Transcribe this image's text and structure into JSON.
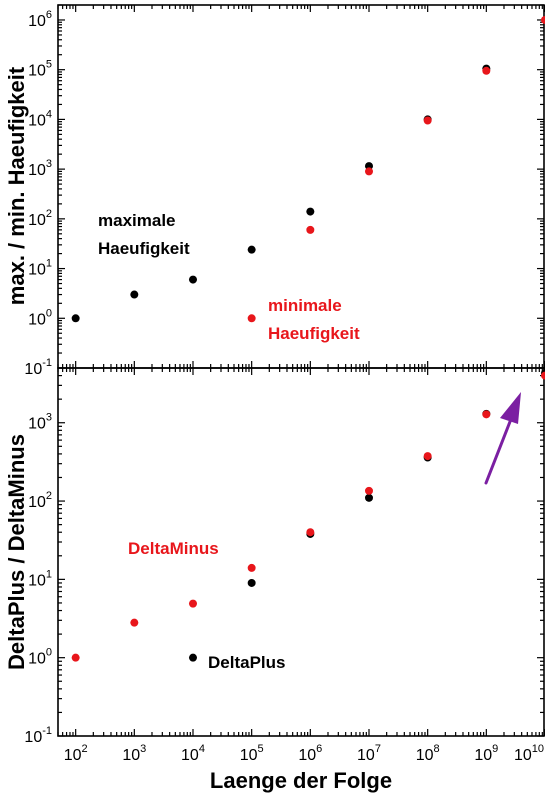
{
  "chart_data": [
    {
      "type": "scatter",
      "panel": "top",
      "title": "",
      "ylabel": "max. / min. Haeufigkeit",
      "xscale": "log",
      "yscale": "log",
      "xlim": [
        50,
        10000000000
      ],
      "ylim": [
        0.1,
        2000000
      ],
      "ytick_exponents": [
        -1,
        0,
        1,
        2,
        3,
        4,
        5,
        6
      ],
      "series": [
        {
          "name": "maximale Haeufigkeit",
          "color": "#000000",
          "x": [
            100,
            1000,
            10000,
            100000,
            1000000,
            10000000,
            100000000,
            1000000000
          ],
          "y": [
            1,
            3,
            6,
            24,
            140,
            1150,
            10000,
            105000
          ]
        },
        {
          "name": "minimale Haeufigkeit",
          "color": "#e8161b",
          "x": [
            100000,
            1000000,
            10000000,
            100000000,
            1000000000,
            10000000000
          ],
          "y": [
            1,
            60,
            900,
            9500,
            95000,
            1000000
          ]
        }
      ],
      "annotations": [
        {
          "id": "max",
          "lines": [
            "maximale",
            "Haeufigkeit"
          ],
          "color": "#000000"
        },
        {
          "id": "min",
          "lines": [
            "minimale",
            "Haeufigkeit"
          ],
          "color": "#e8161b"
        }
      ]
    },
    {
      "type": "scatter",
      "panel": "bottom",
      "title": "",
      "xlabel": "Laenge der Folge",
      "ylabel": "DeltaPlus / DeltaMinus",
      "xscale": "log",
      "yscale": "log",
      "xlim": [
        50,
        10000000000
      ],
      "ylim": [
        0.1,
        5000
      ],
      "xtick_exponents": [
        2,
        3,
        4,
        5,
        6,
        7,
        8,
        9,
        10
      ],
      "ytick_exponents": [
        -1,
        0,
        1,
        2,
        3
      ],
      "series": [
        {
          "name": "DeltaPlus",
          "color": "#000000",
          "x": [
            10000,
            100000,
            1000000,
            10000000,
            100000000,
            1000000000,
            10000000000
          ],
          "y": [
            1,
            9,
            38,
            110,
            360,
            1300,
            4300
          ]
        },
        {
          "name": "DeltaMinus",
          "color": "#e8161b",
          "x": [
            100,
            1000,
            10000,
            100000,
            1000000,
            10000000,
            100000000,
            1000000000,
            10000000000
          ],
          "y": [
            1,
            2.8,
            4.9,
            14,
            40,
            135,
            375,
            1280,
            4000
          ]
        }
      ],
      "annotations": [
        {
          "id": "plus",
          "lines": [
            "DeltaPlus"
          ],
          "color": "#000000"
        },
        {
          "id": "minus",
          "lines": [
            "DeltaMinus"
          ],
          "color": "#e8161b"
        },
        {
          "id": "arrow",
          "color": "#7b1fa2"
        }
      ]
    }
  ]
}
